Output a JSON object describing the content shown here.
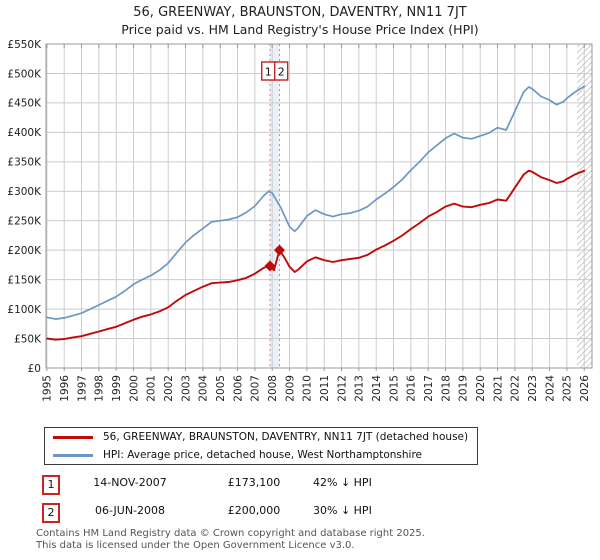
{
  "title": "56, GREENWAY, BRAUNSTON, DAVENTRY, NN11 7JT",
  "subtitle": "Price paid vs. HM Land Registry's House Price Index (HPI)",
  "chart_data": {
    "type": "line",
    "title": "56, GREENWAY, BRAUNSTON, DAVENTRY, NN11 7JT",
    "subtitle": "Price paid vs. HM Land Registry's House Price Index (HPI)",
    "grid": true,
    "x_axis": {
      "range": [
        1994.95,
        2026.45
      ],
      "ticks": [
        1995,
        1996,
        1997,
        1998,
        1999,
        2000,
        2001,
        2002,
        2003,
        2004,
        2005,
        2006,
        2007,
        2008,
        2009,
        2010,
        2011,
        2012,
        2013,
        2014,
        2015,
        2016,
        2017,
        2018,
        2019,
        2020,
        2021,
        2022,
        2023,
        2024,
        2025,
        2026
      ]
    },
    "y_axis": {
      "range_k": [
        0,
        550
      ],
      "ticks_k": [
        0,
        50,
        100,
        150,
        200,
        250,
        300,
        350,
        400,
        450,
        500,
        550
      ],
      "tick_labels": [
        "£0",
        "£50K",
        "£100K",
        "£150K",
        "£200K",
        "£250K",
        "£300K",
        "£350K",
        "£400K",
        "£450K",
        "£500K",
        "£550K"
      ]
    },
    "future_hatch_start": 2025.58,
    "event_band": {
      "from": 2007.87,
      "to": 2008.42,
      "color": "#dfe8f6"
    },
    "event_line_color": "#ee8080",
    "grid_color": "#cccccc",
    "frame_color": "#9a9a9a",
    "series": [
      {
        "name": "HPI: Average price, detached house, West Northamptonshire",
        "color": "#6d96c4",
        "width": 1.7,
        "x": [
          1995,
          1995.5,
          1996,
          1996.5,
          1997,
          1997.5,
          1998,
          1998.5,
          1999,
          1999.5,
          2000,
          2000.5,
          2001,
          2001.5,
          2002,
          2002.5,
          2003,
          2003.5,
          2004,
          2004.5,
          2005,
          2005.5,
          2006,
          2006.5,
          2007,
          2007.5,
          2007.8,
          2008,
          2008.5,
          2009,
          2009.3,
          2009.5,
          2010,
          2010.5,
          2011,
          2011.5,
          2012,
          2012.5,
          2013,
          2013.5,
          2014,
          2014.5,
          2015,
          2015.5,
          2016,
          2016.5,
          2017,
          2017.5,
          2018,
          2018.5,
          2019,
          2019.5,
          2020,
          2020.5,
          2021,
          2021.5,
          2022,
          2022.5,
          2022.8,
          2023,
          2023.5,
          2024,
          2024.4,
          2024.8,
          2025,
          2025.5,
          2026
        ],
        "y_k": [
          86,
          83,
          85,
          89,
          93,
          100,
          107,
          114,
          121,
          131,
          142,
          150,
          157,
          166,
          178,
          196,
          213,
          226,
          237,
          248,
          250,
          252,
          256,
          264,
          275,
          292,
          300,
          297,
          272,
          240,
          232,
          238,
          258,
          268,
          261,
          257,
          261,
          263,
          267,
          274,
          286,
          296,
          307,
          320,
          336,
          350,
          366,
          378,
          390,
          398,
          391,
          389,
          394,
          399,
          408,
          404,
          436,
          468,
          477,
          474,
          461,
          455,
          447,
          452,
          458,
          469,
          478
        ]
      },
      {
        "name": "56, GREENWAY, BRAUNSTON, DAVENTRY, NN11 7JT (detached house)",
        "color": "#c00a0a",
        "width": 1.9,
        "x": [
          1995,
          1995.5,
          1996,
          1996.5,
          1997,
          1997.5,
          1998,
          1998.5,
          1999,
          1999.5,
          2000,
          2000.5,
          2001,
          2001.5,
          2002,
          2002.5,
          2003,
          2003.5,
          2004,
          2004.5,
          2005,
          2005.5,
          2006,
          2006.5,
          2007,
          2007.5,
          2007.87,
          2008.1,
          2008.42,
          2008.7,
          2009,
          2009.3,
          2009.5,
          2010,
          2010.5,
          2011,
          2011.5,
          2012,
          2012.5,
          2013,
          2013.5,
          2014,
          2014.5,
          2015,
          2015.5,
          2016,
          2016.5,
          2017,
          2017.5,
          2018,
          2018.5,
          2019,
          2019.5,
          2020,
          2020.5,
          2021,
          2021.5,
          2022,
          2022.5,
          2022.8,
          2023,
          2023.5,
          2024,
          2024.4,
          2024.8,
          2025,
          2025.5,
          2026
        ],
        "y_k": [
          50,
          48,
          49,
          52,
          54,
          58,
          62,
          66,
          70,
          76,
          82,
          87,
          91,
          96,
          103,
          114,
          124,
          131,
          138,
          144,
          145,
          146,
          149,
          153,
          160,
          170,
          173.1,
          166,
          200,
          188,
          172,
          163,
          167,
          181,
          188,
          183,
          180,
          183,
          185,
          187,
          192,
          201,
          208,
          216,
          225,
          236,
          246,
          257,
          265,
          274,
          279,
          274,
          273,
          277,
          280,
          286,
          284,
          306,
          328,
          335,
          333,
          324,
          319,
          314,
          317,
          321,
          329,
          335
        ]
      }
    ],
    "markers": [
      {
        "label": "1",
        "x": 2007.87,
        "y_k": 173.1,
        "color": "#c00a0a"
      },
      {
        "label": "2",
        "x": 2008.42,
        "y_k": 200,
        "color": "#c00a0a"
      }
    ],
    "annotation_box_border": "#c22222"
  },
  "legend": {
    "items": [
      {
        "label": "56, GREENWAY, BRAUNSTON, DAVENTRY, NN11 7JT (detached house)",
        "color": "#c00a0a"
      },
      {
        "label": "HPI: Average price, detached house, West Northamptonshire",
        "color": "#6d96c4"
      }
    ]
  },
  "transactions": [
    {
      "num": "1",
      "date": "14-NOV-2007",
      "price": "£173,100",
      "delta": "42% ↓ HPI"
    },
    {
      "num": "2",
      "date": "06-JUN-2008",
      "price": "£200,000",
      "delta": "30% ↓ HPI"
    }
  ],
  "footer": {
    "line1": "Contains HM Land Registry data © Crown copyright and database right 2025.",
    "line2": "This data is licensed under the Open Government Licence v3.0."
  }
}
